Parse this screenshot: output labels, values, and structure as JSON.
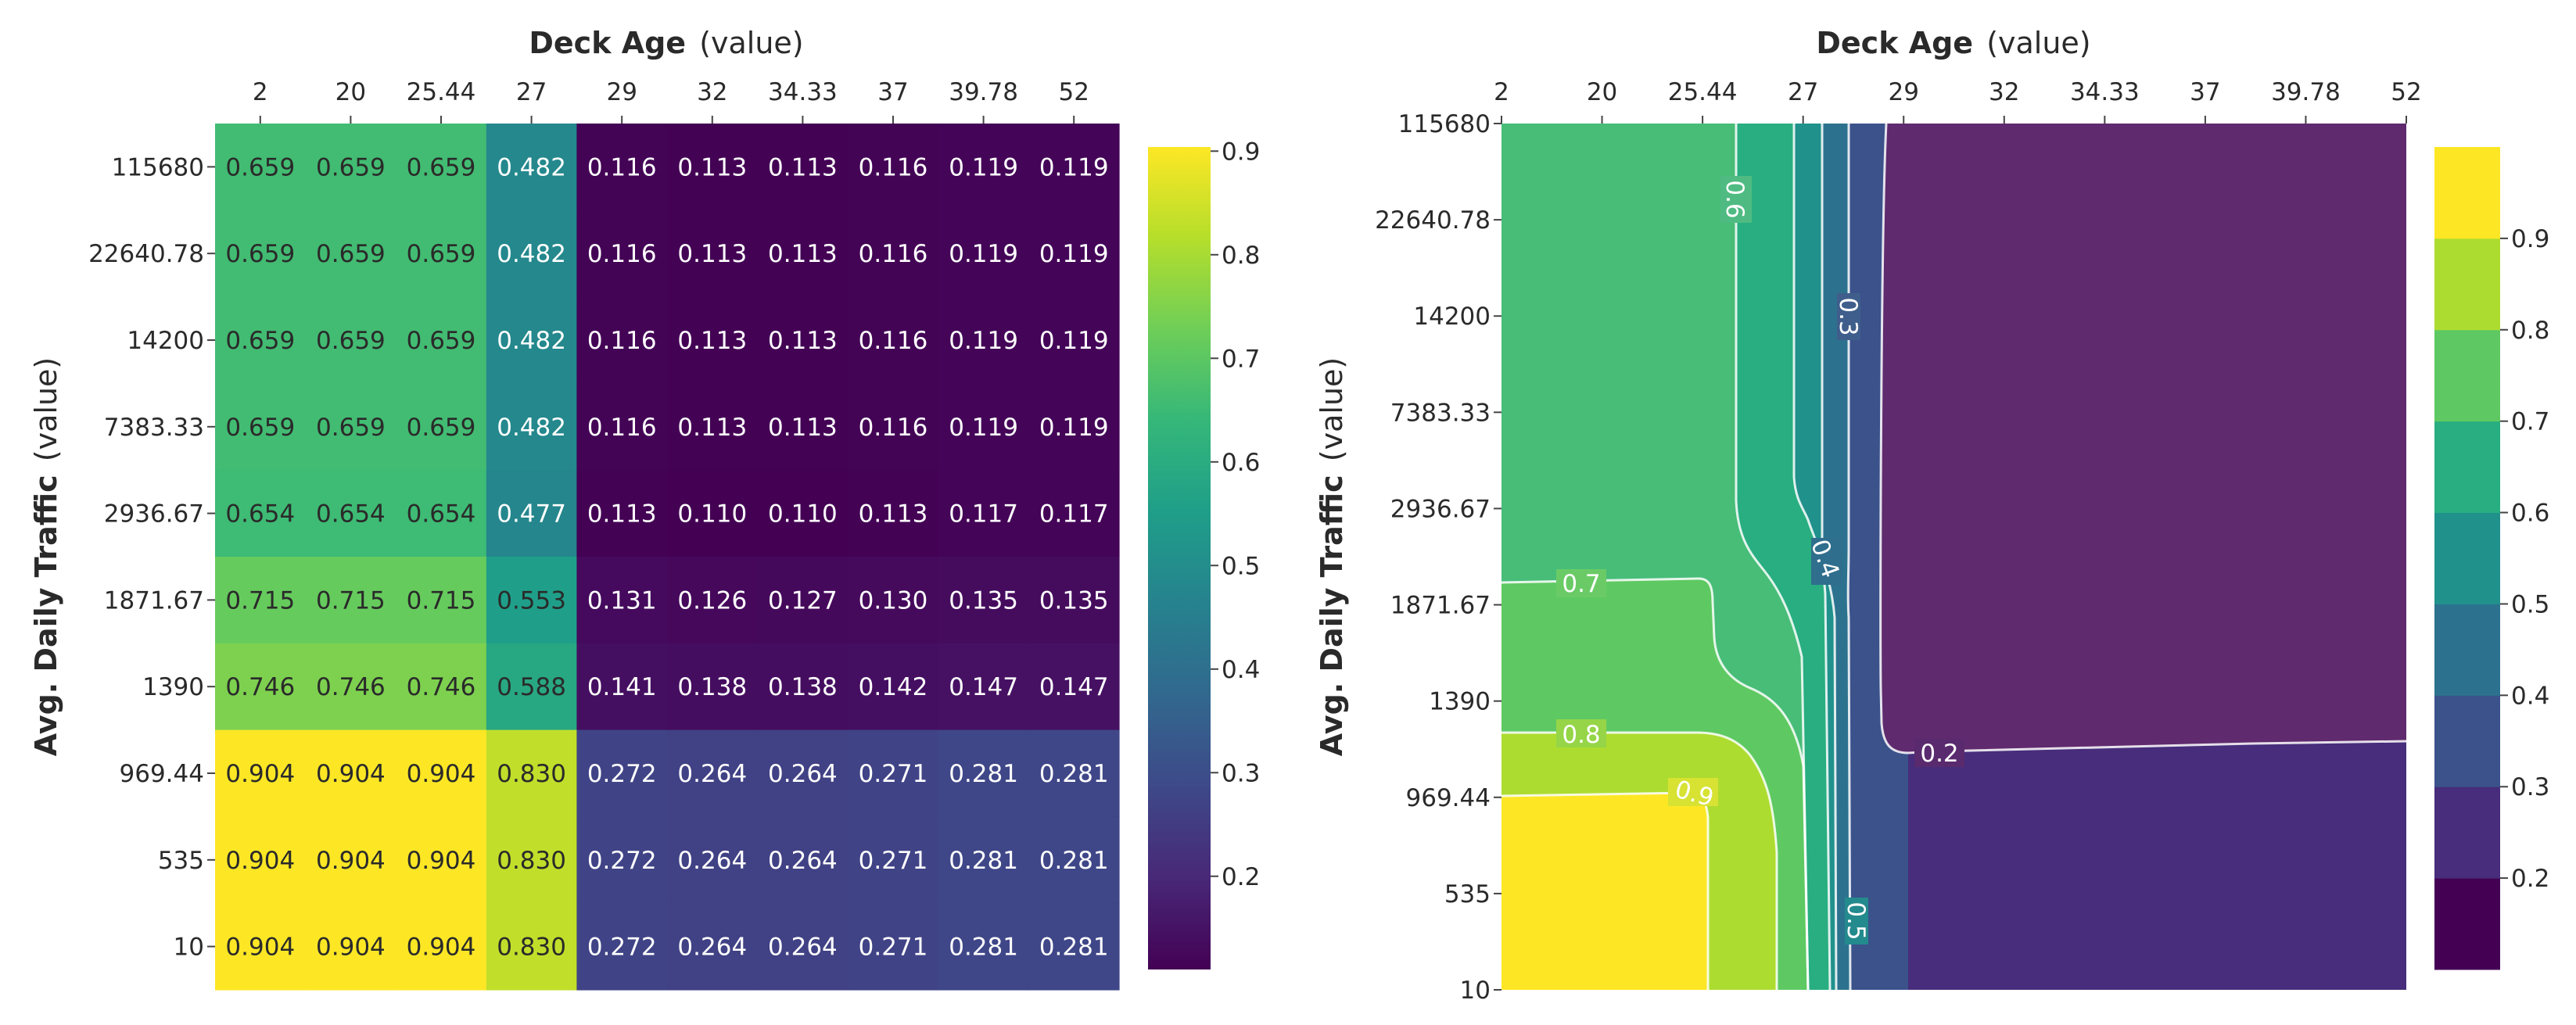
{
  "chart_data": [
    {
      "type": "heatmap",
      "xaxis_title": "Deck Age",
      "xaxis_suffix": "(value)",
      "yaxis_title": "Avg. Daily Traffic",
      "yaxis_suffix": "(value)",
      "x_ticks": [
        "2",
        "20",
        "25.44",
        "27",
        "29",
        "32",
        "34.33",
        "37",
        "39.78",
        "52"
      ],
      "y_ticks": [
        "115680",
        "22640.78",
        "14200",
        "7383.33",
        "2936.67",
        "1871.67",
        "1390",
        "969.44",
        "535",
        "10"
      ],
      "z": [
        [
          "0.659",
          "0.659",
          "0.659",
          "0.482",
          "0.116",
          "0.113",
          "0.113",
          "0.116",
          "0.119",
          "0.119"
        ],
        [
          "0.659",
          "0.659",
          "0.659",
          "0.482",
          "0.116",
          "0.113",
          "0.113",
          "0.116",
          "0.119",
          "0.119"
        ],
        [
          "0.659",
          "0.659",
          "0.659",
          "0.482",
          "0.116",
          "0.113",
          "0.113",
          "0.116",
          "0.119",
          "0.119"
        ],
        [
          "0.659",
          "0.659",
          "0.659",
          "0.482",
          "0.116",
          "0.113",
          "0.113",
          "0.116",
          "0.119",
          "0.119"
        ],
        [
          "0.654",
          "0.654",
          "0.654",
          "0.477",
          "0.113",
          "0.110",
          "0.110",
          "0.113",
          "0.117",
          "0.117"
        ],
        [
          "0.715",
          "0.715",
          "0.715",
          "0.553",
          "0.131",
          "0.126",
          "0.127",
          "0.130",
          "0.135",
          "0.135"
        ],
        [
          "0.746",
          "0.746",
          "0.746",
          "0.588",
          "0.141",
          "0.138",
          "0.138",
          "0.142",
          "0.147",
          "0.147"
        ],
        [
          "0.904",
          "0.904",
          "0.904",
          "0.830",
          "0.272",
          "0.264",
          "0.264",
          "0.271",
          "0.281",
          "0.281"
        ],
        [
          "0.904",
          "0.904",
          "0.904",
          "0.830",
          "0.272",
          "0.264",
          "0.264",
          "0.271",
          "0.281",
          "0.281"
        ],
        [
          "0.904",
          "0.904",
          "0.904",
          "0.830",
          "0.272",
          "0.264",
          "0.264",
          "0.271",
          "0.281",
          "0.281"
        ]
      ],
      "colorscale": "Viridis",
      "zrange": [
        0.11,
        0.904
      ],
      "colorbar_ticks": [
        "0.2",
        "0.3",
        "0.4",
        "0.5",
        "0.6",
        "0.7",
        "0.8",
        "0.9"
      ]
    },
    {
      "type": "contour",
      "xaxis_title": "Deck Age",
      "xaxis_suffix": "(value)",
      "yaxis_title": "Avg. Daily Traffic",
      "yaxis_suffix": "(value)",
      "x_ticks": [
        "2",
        "20",
        "25.44",
        "27",
        "29",
        "32",
        "34.33",
        "37",
        "39.78",
        "52"
      ],
      "y_ticks": [
        "115680",
        "22640.78",
        "14200",
        "7383.33",
        "2936.67",
        "1871.67",
        "1390",
        "969.44",
        "535",
        "10"
      ],
      "contour_labels": [
        "0.2",
        "0.3",
        "0.4",
        "0.5",
        "0.6",
        "0.7",
        "0.8",
        "0.9"
      ],
      "colorbar_ticks": [
        "0.2",
        "0.3",
        "0.4",
        "0.5",
        "0.6",
        "0.7",
        "0.8",
        "0.9"
      ],
      "level_colors": [
        "#440154",
        "#472d7b",
        "#3b528b",
        "#2c728e",
        "#21918c",
        "#28ae80",
        "#5ec962",
        "#addc30",
        "#fde725"
      ]
    }
  ]
}
